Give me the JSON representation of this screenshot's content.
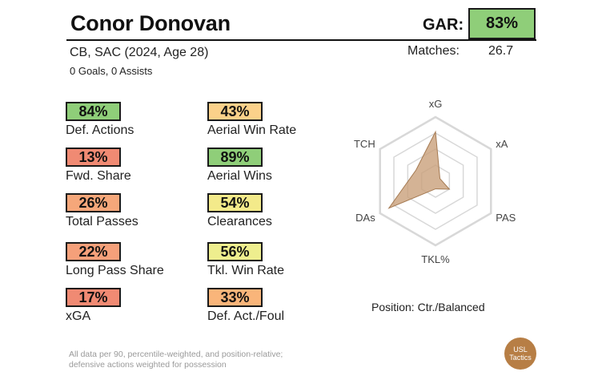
{
  "header": {
    "player_name": "Conor Donovan",
    "gar_label": "GAR:",
    "gar_value": "83%",
    "gar_pct": 83,
    "gar_color": "#8fce79",
    "subline": "CB, SAC (2024, Age 28)",
    "goals_assists": "0 Goals,  0 Assists",
    "matches_label": "Matches:",
    "matches_value": "26.7"
  },
  "metrics": [
    {
      "value": "84%",
      "label": "Def. Actions",
      "pct": 84,
      "color": "#8fce79"
    },
    {
      "value": "13%",
      "label": "Fwd. Share",
      "pct": 13,
      "color": "#f08a73"
    },
    {
      "value": "26%",
      "label": "Total Passes",
      "pct": 26,
      "color": "#f5a77a"
    },
    {
      "value": "22%",
      "label": "Long Pass Share",
      "pct": 22,
      "color": "#f5a07a"
    },
    {
      "value": "17%",
      "label": "xGA",
      "pct": 17,
      "color": "#f08a73"
    },
    {
      "value": "43%",
      "label": "Aerial Win Rate",
      "pct": 43,
      "color": "#fbd18a"
    },
    {
      "value": "89%",
      "label": "Aerial Wins",
      "pct": 89,
      "color": "#8fce79"
    },
    {
      "value": "54%",
      "label": "Clearances",
      "pct": 54,
      "color": "#f3ea8a"
    },
    {
      "value": "56%",
      "label": "Tkl. Win Rate",
      "pct": 56,
      "color": "#eeee8e"
    },
    {
      "value": "33%",
      "label": "Def. Act./Foul",
      "pct": 33,
      "color": "#f9b57a"
    }
  ],
  "radar": {
    "axes": [
      "xG",
      "xA",
      "PAS",
      "TKL%",
      "DAs",
      "TCH"
    ],
    "values": [
      0.77,
      0.08,
      0.25,
      0.12,
      0.84,
      0.35
    ],
    "fill_color": "#c9a07a",
    "stroke_color": "#a57a52",
    "grid_color": "#d8d8d8"
  },
  "position_text": "Position: Ctr./Balanced",
  "footnote": {
    "line1": "All data per 90, percentile-weighted, and position-relative;",
    "line2": "defensive actions weighted for possession"
  },
  "logo": {
    "line1": "USL",
    "line2": "Tactics"
  }
}
